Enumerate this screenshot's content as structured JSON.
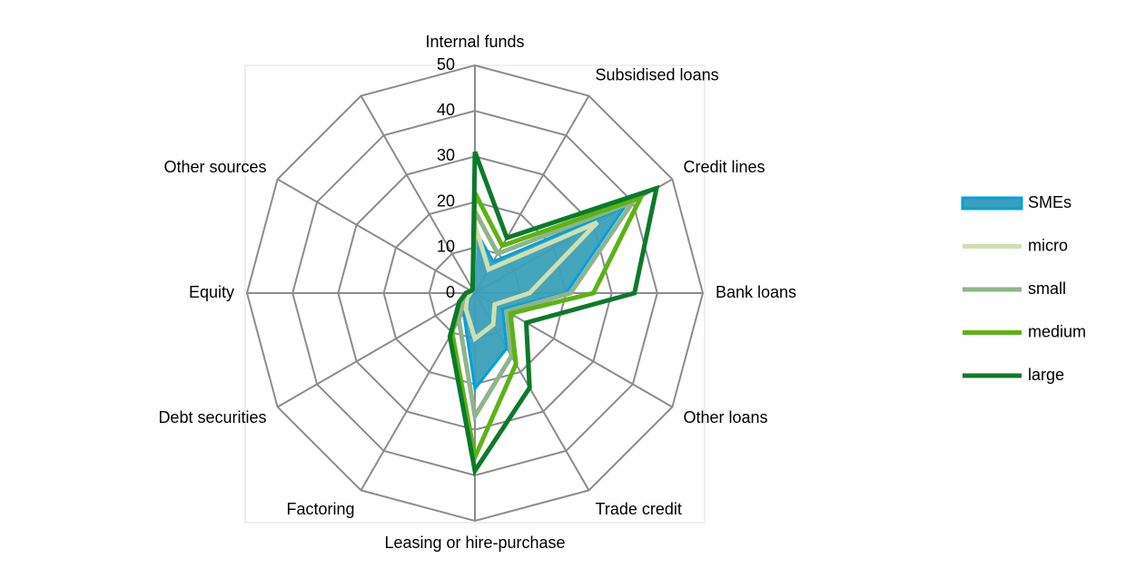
{
  "chart_data": {
    "type": "radar",
    "categories": [
      "Internal funds",
      "Subsidised loans",
      "Credit lines",
      "Bank loans",
      "Other loans",
      "Trade credit",
      "Leasing or hire-purchase",
      "Factoring",
      "Debt securities",
      "Equity",
      "Other sources",
      null
    ],
    "rlim": [
      0,
      50
    ],
    "rticks": [
      0,
      10,
      20,
      30,
      40,
      50
    ],
    "grid": true,
    "legend": "right",
    "series": [
      {
        "name": "SMEs",
        "color": "#00a0e0",
        "fill": "#3a9fb8",
        "values": [
          14,
          8,
          38,
          20,
          7,
          14,
          21,
          5,
          3,
          2,
          1,
          1
        ]
      },
      {
        "name": "micro",
        "color": "#cfe0b0",
        "values": [
          15,
          6,
          31,
          12,
          5,
          8,
          10,
          4,
          2,
          1,
          1,
          1
        ]
      },
      {
        "name": "small",
        "color": "#8fb48a",
        "values": [
          18,
          10,
          40,
          21,
          8,
          16,
          27,
          7,
          3,
          2,
          1,
          1
        ]
      },
      {
        "name": "medium",
        "color": "#5cb314",
        "values": [
          22,
          12,
          42,
          26,
          9,
          18,
          36,
          10,
          4,
          2,
          1,
          1
        ]
      },
      {
        "name": "large",
        "color": "#0b7a2a",
        "values": [
          31,
          14,
          46,
          35,
          13,
          24,
          39,
          11,
          4,
          2,
          1,
          1
        ]
      }
    ]
  }
}
